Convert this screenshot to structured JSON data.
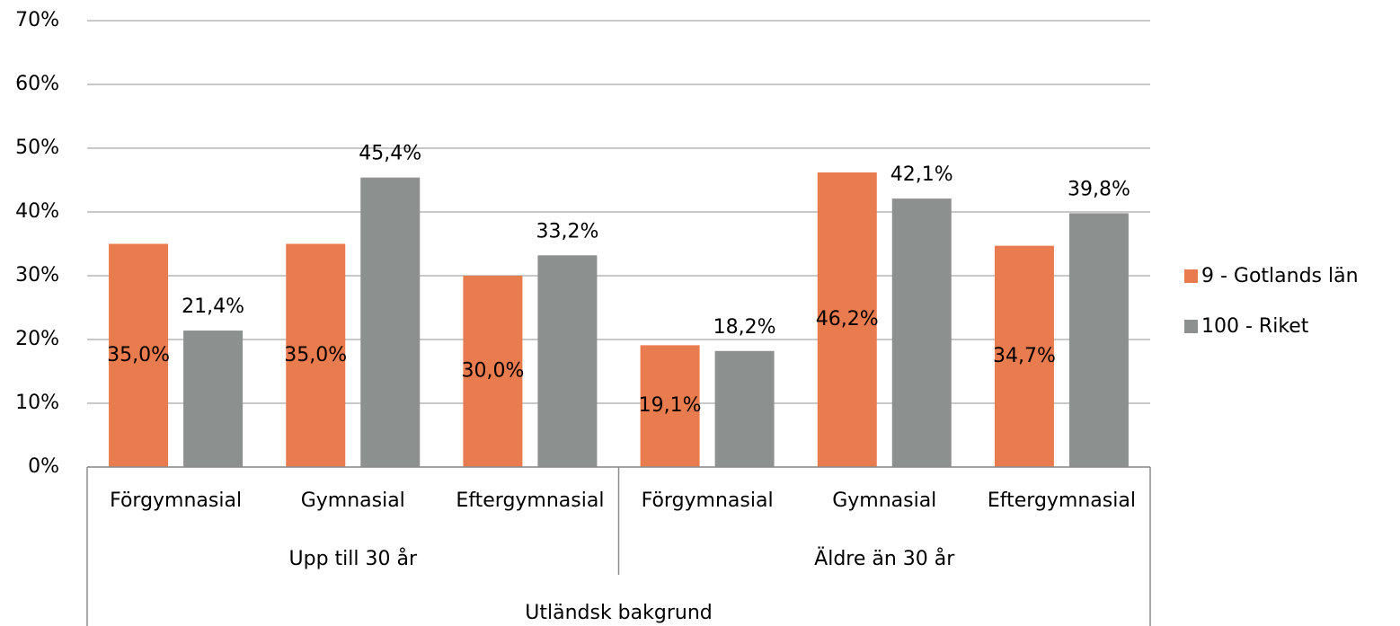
{
  "chart_data": {
    "type": "bar",
    "categories": [
      "Förgymnasial",
      "Gymnasial",
      "Eftergymnasial",
      "Förgymnasial",
      "Gymnasial",
      "Eftergymnasial"
    ],
    "category_groups": [
      "Upp till 30 år",
      "Äldre än 30 år"
    ],
    "category_supergroup": "Utländsk bakgrund",
    "series": [
      {
        "name": "9 - Gotlands län",
        "color": "#e97c4e",
        "values": [
          35.0,
          35.0,
          30.0,
          19.1,
          46.2,
          34.7
        ],
        "value_labels": [
          "35,0%",
          "35,0%",
          "30,0%",
          "19,1%",
          "46,2%",
          "34,7%"
        ]
      },
      {
        "name": "100 - Riket",
        "color": "#8c918f",
        "values": [
          21.4,
          45.4,
          33.2,
          18.2,
          42.1,
          39.8
        ],
        "value_labels": [
          "21,4%",
          "45,4%",
          "33,2%",
          "18,2%",
          "42,1%",
          "39,8%"
        ]
      }
    ],
    "ylim": [
      0,
      70
    ],
    "yticks": [
      {
        "value": 0,
        "label": "0%"
      },
      {
        "value": 10,
        "label": "10%"
      },
      {
        "value": 20,
        "label": "20%"
      },
      {
        "value": 30,
        "label": "30%"
      },
      {
        "value": 40,
        "label": "40%"
      },
      {
        "value": 50,
        "label": "50%"
      },
      {
        "value": 60,
        "label": "60%"
      },
      {
        "value": 70,
        "label": "70%"
      }
    ],
    "grid": true,
    "legend": "right"
  }
}
